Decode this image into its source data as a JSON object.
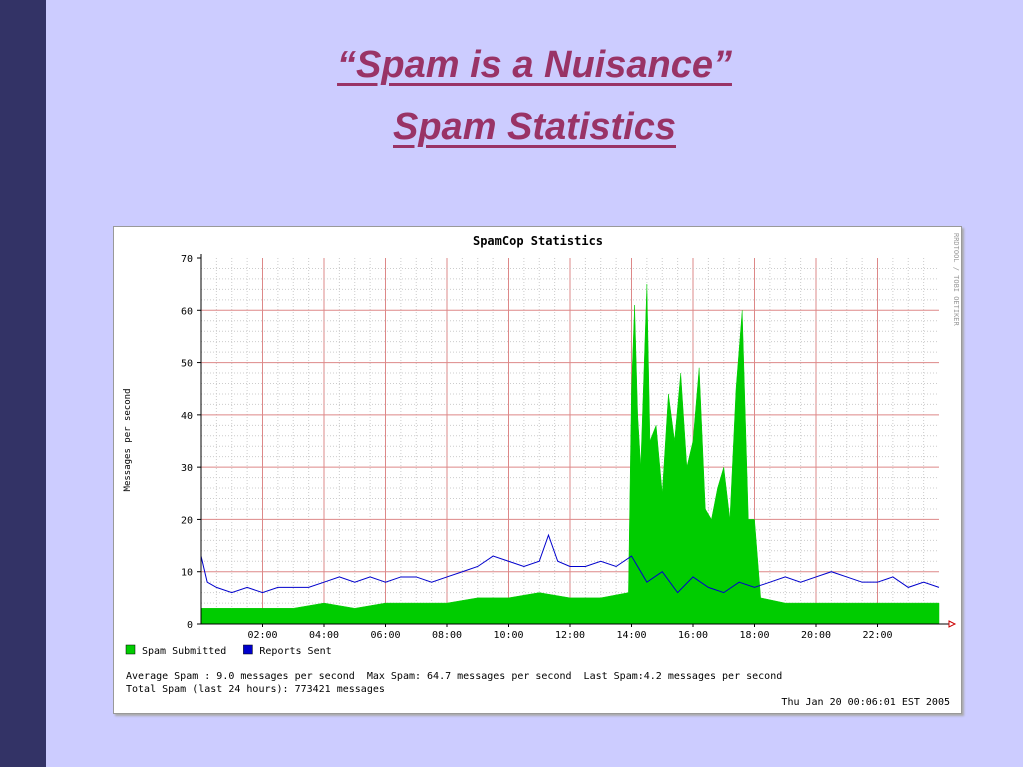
{
  "slide": {
    "title": "“Spam is a Nuisance”",
    "subtitle": "Spam Statistics"
  },
  "chart_data": {
    "type": "area",
    "title": "SpamCop Statistics",
    "ylabel": "Messages per second",
    "xlabel": "",
    "ylim": [
      0,
      70
    ],
    "yticks": [
      0,
      10,
      20,
      30,
      40,
      50,
      60,
      70
    ],
    "xlim_hours": [
      0,
      24
    ],
    "xticks": [
      {
        "hour": 2,
        "label": "02:00"
      },
      {
        "hour": 4,
        "label": "04:00"
      },
      {
        "hour": 6,
        "label": "06:00"
      },
      {
        "hour": 8,
        "label": "08:00"
      },
      {
        "hour": 10,
        "label": "10:00"
      },
      {
        "hour": 12,
        "label": "12:00"
      },
      {
        "hour": 14,
        "label": "14:00"
      },
      {
        "hour": 16,
        "label": "16:00"
      },
      {
        "hour": 18,
        "label": "18:00"
      },
      {
        "hour": 20,
        "label": "20:00"
      },
      {
        "hour": 22,
        "label": "22:00"
      }
    ],
    "grid": true,
    "watermark": "RRDTOOL / TOBI OETIKER",
    "series": [
      {
        "name": "Spam Submitted",
        "style": "area",
        "color": "#00cc00",
        "x": [
          0,
          1,
          2,
          3,
          4,
          5,
          6,
          7,
          8,
          9,
          10,
          11,
          12,
          13,
          13.9,
          14.0,
          14.1,
          14.2,
          14.3,
          14.5,
          14.6,
          14.8,
          15.0,
          15.2,
          15.4,
          15.6,
          15.8,
          16.0,
          16.2,
          16.4,
          16.6,
          16.8,
          17.0,
          17.2,
          17.4,
          17.6,
          17.8,
          18.0,
          18.2,
          19,
          20,
          21,
          22,
          23,
          24
        ],
        "values": [
          3,
          3,
          3,
          3,
          4,
          3,
          4,
          4,
          4,
          5,
          5,
          6,
          5,
          5,
          6,
          45,
          61,
          40,
          30,
          65,
          35,
          38,
          25,
          44,
          35,
          48,
          30,
          35,
          49,
          22,
          20,
          26,
          30,
          20,
          45,
          60,
          20,
          20,
          5,
          4,
          4,
          4,
          4,
          4,
          4
        ]
      },
      {
        "name": "Reports Sent",
        "style": "line",
        "color": "#0000cc",
        "x": [
          0,
          0.2,
          0.5,
          1,
          1.5,
          2,
          2.5,
          3,
          3.5,
          4,
          4.5,
          5,
          5.5,
          6,
          6.5,
          7,
          7.5,
          8,
          8.5,
          9,
          9.5,
          10,
          10.5,
          11,
          11.3,
          11.6,
          12,
          12.5,
          13,
          13.5,
          14,
          14.5,
          15,
          15.5,
          16,
          16.5,
          17,
          17.5,
          18,
          18.5,
          19,
          19.5,
          20,
          20.5,
          21,
          21.5,
          22,
          22.5,
          23,
          23.5,
          24
        ],
        "values": [
          13,
          8,
          7,
          6,
          7,
          6,
          7,
          7,
          7,
          8,
          9,
          8,
          9,
          8,
          9,
          9,
          8,
          9,
          10,
          11,
          13,
          12,
          11,
          12,
          17,
          12,
          11,
          11,
          12,
          11,
          13,
          8,
          10,
          6,
          9,
          7,
          6,
          8,
          7,
          8,
          9,
          8,
          9,
          10,
          9,
          8,
          8,
          9,
          7,
          8,
          7
        ]
      }
    ],
    "stats": {
      "line1": "Average Spam : 9.0 messages per second  Max Spam: 64.7 messages per second  Last Spam:4.2 messages per second",
      "line2": "Total Spam (last 24 hours): 773421 messages",
      "timestamp": "Thu Jan 20 00:06:01 EST 2005"
    }
  }
}
